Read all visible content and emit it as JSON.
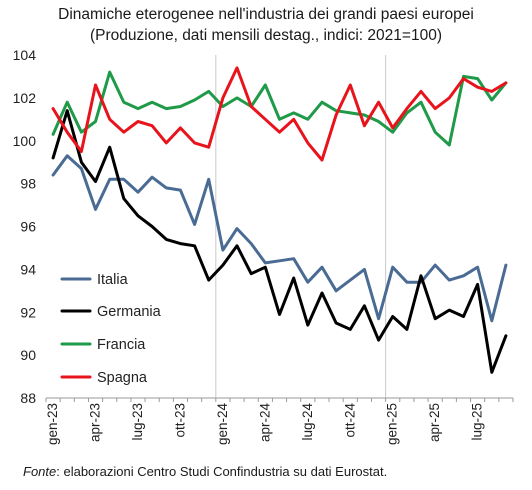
{
  "chart_data": {
    "type": "line",
    "title": "Dinamiche eterogenee nell'industria dei grandi paesi europei",
    "subtitle": "(Produzione, dati mensili destag., indici: 2021=100)",
    "source_lead": "Fonte",
    "source_rest": ": elaborazioni Centro Studi Confindustria su dati Eurostat.",
    "ylim": [
      88,
      104
    ],
    "yticks": [
      88,
      90,
      92,
      94,
      96,
      98,
      100,
      102,
      104
    ],
    "grid": false,
    "vertical_separators_after": [
      "dic-23",
      "dic-24"
    ],
    "legend_position": "bottom-left",
    "x": [
      "gen-23",
      "feb-23",
      "mar-23",
      "apr-23",
      "mag-23",
      "giu-23",
      "lug-23",
      "ago-23",
      "set-23",
      "ott-23",
      "nov-23",
      "dic-23",
      "gen-24",
      "feb-24",
      "mar-24",
      "apr-24",
      "mag-24",
      "giu-24",
      "lug-24",
      "ago-24",
      "set-24",
      "ott-24",
      "nov-24",
      "dic-24",
      "gen-25",
      "feb-25",
      "mar-25",
      "apr-25",
      "mag-25",
      "giu-25",
      "lug-25",
      "ago-25",
      "set-25"
    ],
    "xtick_labels": [
      "gen-23",
      "apr-23",
      "lug-23",
      "ott-23",
      "gen-24",
      "apr-24",
      "lug-24",
      "ott-24",
      "gen-25",
      "apr-25",
      "lug-25"
    ],
    "series": [
      {
        "name": "Italia",
        "color": "#4a6b93",
        "values": [
          98.4,
          99.3,
          98.7,
          96.8,
          98.2,
          98.2,
          97.6,
          98.3,
          97.8,
          97.7,
          96.1,
          98.2,
          94.9,
          95.9,
          95.2,
          94.3,
          94.4,
          94.5,
          93.4,
          94.1,
          93.0,
          93.5,
          94.0,
          91.7,
          94.1,
          93.4,
          93.4,
          94.2,
          93.5,
          93.7,
          94.1,
          91.6,
          94.2
        ]
      },
      {
        "name": "Germania",
        "color": "#000000",
        "values": [
          99.2,
          101.4,
          99.0,
          98.1,
          99.7,
          97.3,
          96.5,
          96.0,
          95.4,
          95.2,
          95.1,
          93.5,
          94.2,
          95.1,
          93.8,
          94.1,
          91.9,
          93.6,
          91.4,
          92.9,
          91.5,
          91.2,
          92.3,
          90.7,
          91.8,
          91.2,
          93.7,
          91.7,
          92.1,
          91.8,
          93.3,
          89.2,
          90.9
        ]
      },
      {
        "name": "Francia",
        "color": "#1e9a48",
        "values": [
          100.3,
          101.8,
          100.4,
          100.9,
          103.2,
          101.8,
          101.5,
          101.8,
          101.5,
          101.6,
          101.9,
          102.3,
          101.6,
          102.0,
          101.6,
          102.6,
          101.0,
          101.3,
          101.0,
          101.8,
          101.4,
          101.3,
          101.2,
          100.9,
          100.4,
          101.3,
          101.8,
          100.4,
          99.8,
          103.0,
          102.9,
          101.9,
          102.7
        ]
      },
      {
        "name": "Spagna",
        "color": "#e8141c",
        "values": [
          101.5,
          100.4,
          99.5,
          102.6,
          101.0,
          100.4,
          100.9,
          100.7,
          99.9,
          100.6,
          99.9,
          99.7,
          102.0,
          103.4,
          101.6,
          101.0,
          100.4,
          101.0,
          99.9,
          99.1,
          101.2,
          102.6,
          100.7,
          101.8,
          100.6,
          101.5,
          102.3,
          101.5,
          102.0,
          102.9,
          102.5,
          102.3,
          102.7
        ]
      }
    ]
  }
}
